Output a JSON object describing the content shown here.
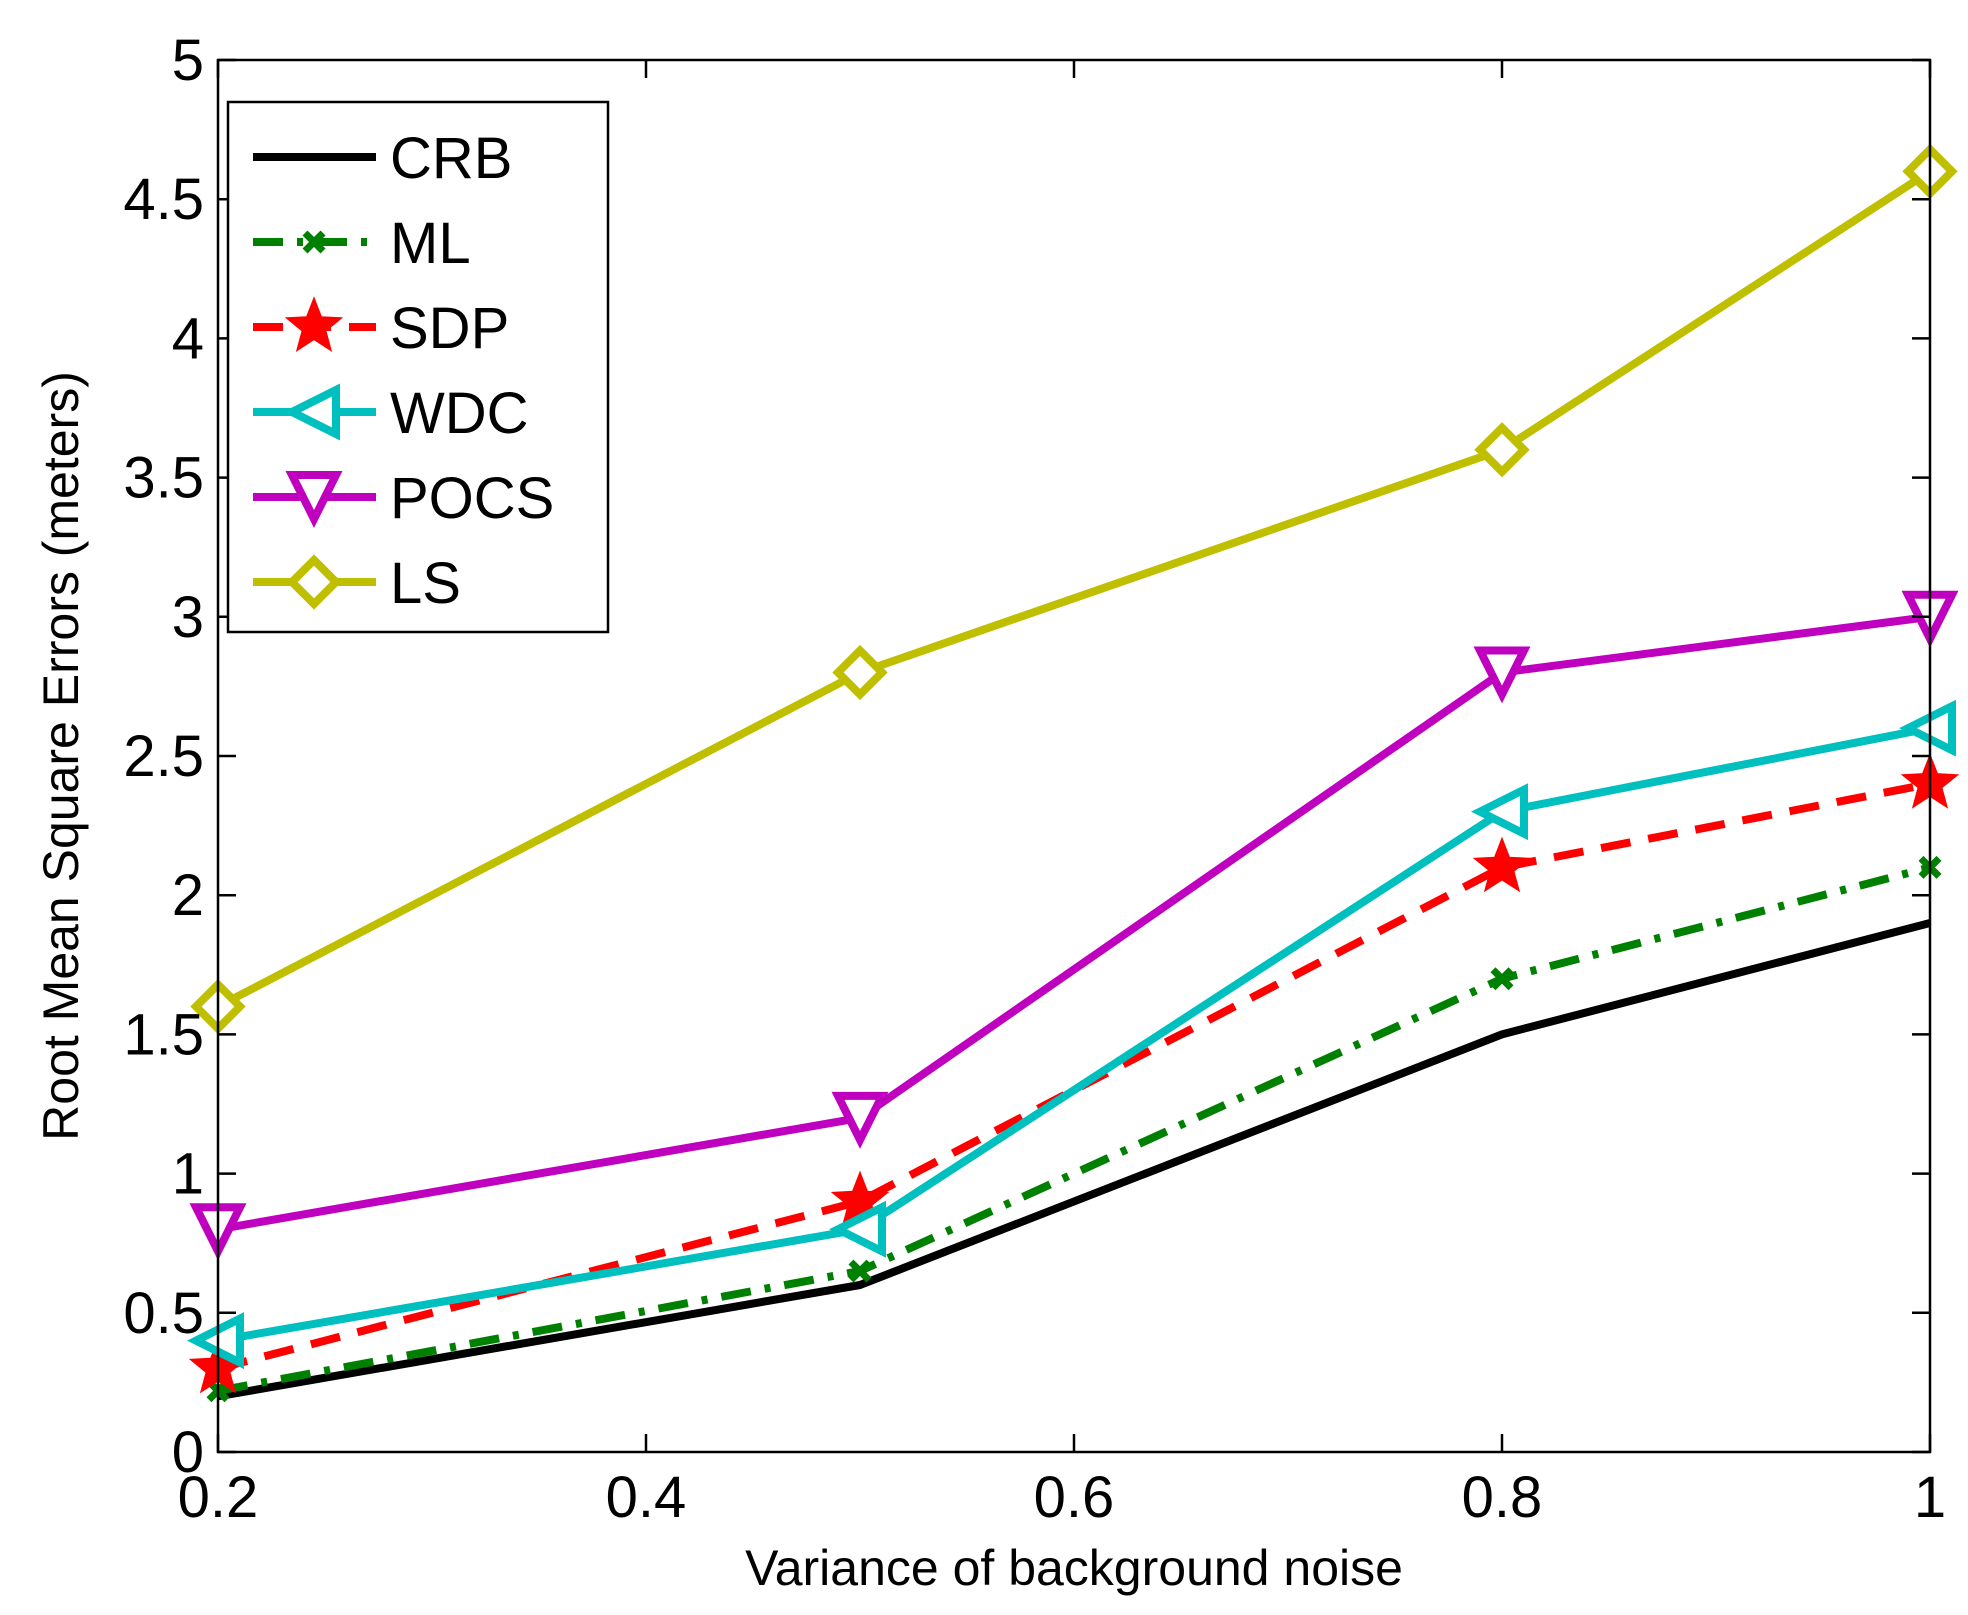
{
  "chart_data": {
    "type": "line",
    "title": "",
    "xlabel": "Variance of background noise",
    "ylabel": "Root Mean Square Errors (meters)",
    "x": [
      0.2,
      0.5,
      0.8,
      1.0
    ],
    "xlim": [
      0.2,
      1.0
    ],
    "ylim": [
      0,
      5
    ],
    "xticks": [
      0.2,
      0.4,
      0.6,
      0.8,
      1
    ],
    "xtick_labels": [
      "0.2",
      "0.4",
      "0.6",
      "0.8",
      "1"
    ],
    "yticks": [
      0,
      0.5,
      1,
      1.5,
      2,
      2.5,
      3,
      3.5,
      4,
      4.5,
      5
    ],
    "ytick_labels": [
      "0",
      "0.5",
      "1",
      "1.5",
      "2",
      "2.5",
      "3",
      "3.5",
      "4",
      "4.5",
      "5"
    ],
    "grid": false,
    "legend_position": "top-left",
    "series": [
      {
        "name": "CRB",
        "values": [
          0.2,
          0.6,
          1.5,
          1.9
        ],
        "color": "#000000",
        "dash": "solid",
        "marker": "none"
      },
      {
        "name": "ML",
        "values": [
          0.22,
          0.65,
          1.7,
          2.1
        ],
        "color": "#008000",
        "dash": "dashdot",
        "marker": "x"
      },
      {
        "name": "SDP",
        "values": [
          0.3,
          0.9,
          2.1,
          2.4
        ],
        "color": "#ff0000",
        "dash": "dashed",
        "marker": "star"
      },
      {
        "name": "WDC",
        "values": [
          0.4,
          0.8,
          2.3,
          2.6
        ],
        "color": "#00bfbf",
        "dash": "solid",
        "marker": "triangle-left"
      },
      {
        "name": "POCS",
        "values": [
          0.8,
          1.2,
          2.8,
          3.0
        ],
        "color": "#bf00bf",
        "dash": "solid",
        "marker": "triangle-down"
      },
      {
        "name": "LS",
        "values": [
          1.6,
          2.8,
          3.6,
          4.6
        ],
        "color": "#bfbf00",
        "dash": "solid",
        "marker": "diamond"
      }
    ]
  }
}
